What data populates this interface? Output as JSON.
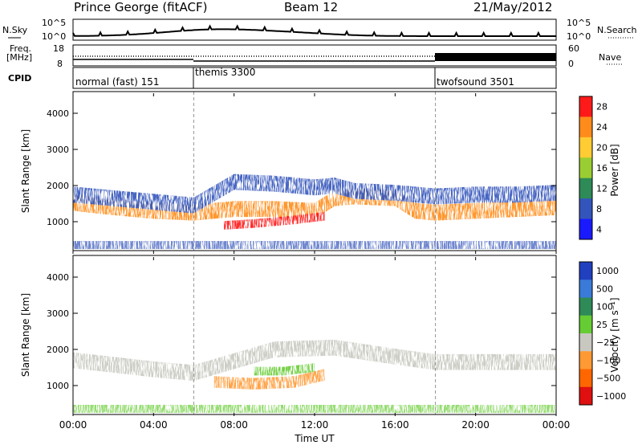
{
  "header": {
    "station": "Prince George (fitACF)",
    "beam": "Beam 12",
    "date": "21/May/2012"
  },
  "strip": {
    "nsky_label": "N.Sky",
    "nsearch_label": "N.Search",
    "noise_ticks": [
      "10^5",
      "10^0"
    ],
    "freq_label_1": "Freq.",
    "freq_label_2": "[MHz]",
    "freq_ticks": [
      "18",
      "8"
    ],
    "nave_label": "Nave",
    "nave_ticks": [
      "60",
      "0"
    ],
    "cpid_label": "CPID"
  },
  "cpid": [
    {
      "name": "normal (fast) 151",
      "start_h": 0
    },
    {
      "name": "themis 3300",
      "start_h": 6
    },
    {
      "name": "twofsound 3501",
      "start_h": 18
    }
  ],
  "power_panel": {
    "ylabel": "Slant Range [km]",
    "colorbar_label": "Power [dB]",
    "colorbar_ticks": [
      "28",
      "24",
      "20",
      "16",
      "12",
      "8",
      "4"
    ],
    "colorbar_colors": [
      "#ff1a1a",
      "#ff8c1a",
      "#ffcc33",
      "#9acd32",
      "#2e8b57",
      "#3355bb",
      "#1a1aff"
    ]
  },
  "velocity_panel": {
    "ylabel": "Slant Range [km]",
    "colorbar_label": "Velocity [m s⁻¹]",
    "colorbar_ticks": [
      "1000",
      "500",
      "100",
      "25",
      "−25",
      "−100",
      "−500",
      "−1000"
    ],
    "colorbar_colors": [
      "#2040c0",
      "#3a7ad8",
      "#2e8b57",
      "#66cc33",
      "#c8c8c0",
      "#ff9933",
      "#ff6600",
      "#e01010"
    ]
  },
  "x_axis": {
    "label": "Time UT",
    "ticks": [
      "00:00",
      "04:00",
      "08:00",
      "12:00",
      "16:00",
      "20:00",
      "00:00"
    ]
  },
  "chart_data": {
    "type": "heatmap",
    "title": "Prince George (fitACF)",
    "subtitle": "Beam 12",
    "date": "21/May/2012",
    "xlabel": "Time UT",
    "ylabel": "Slant Range [km]",
    "xlim": [
      0,
      24
    ],
    "ylim": [
      200,
      4600
    ],
    "y_ticks": [
      1000,
      2000,
      3000,
      4000
    ],
    "grid": false,
    "cpid_boundaries_h": [
      6,
      18
    ],
    "power_bands": [
      {
        "name": "main echo band",
        "points": [
          [
            0,
            1520
          ],
          [
            2,
            1400
          ],
          [
            4,
            1300
          ],
          [
            6,
            1250
          ],
          [
            8,
            1350
          ],
          [
            10,
            1350
          ],
          [
            12,
            1300
          ],
          [
            13,
            1650
          ],
          [
            14,
            1700
          ],
          [
            16,
            1650
          ],
          [
            17,
            1300
          ],
          [
            18,
            1250
          ],
          [
            20,
            1300
          ],
          [
            22,
            1350
          ],
          [
            24,
            1400
          ]
        ],
        "power_db": 22
      },
      {
        "name": "upper band",
        "points": [
          [
            0,
            1750
          ],
          [
            2,
            1650
          ],
          [
            4,
            1550
          ],
          [
            6,
            1450
          ],
          [
            8,
            2100
          ],
          [
            10,
            2050
          ],
          [
            12,
            1950
          ],
          [
            13,
            2000
          ],
          [
            14,
            1850
          ],
          [
            16,
            1800
          ],
          [
            18,
            1700
          ],
          [
            20,
            1750
          ],
          [
            22,
            1750
          ],
          [
            24,
            1800
          ]
        ],
        "power_db": 10
      },
      {
        "name": "strong near-range echo",
        "points": [
          [
            7.5,
            900
          ],
          [
            9,
            950
          ],
          [
            11,
            1050
          ],
          [
            12.5,
            1150
          ]
        ],
        "power_db": 30
      }
    ],
    "velocity_bands": [
      {
        "name": "ground scatter band",
        "points": [
          [
            0,
            1700
          ],
          [
            4,
            1450
          ],
          [
            6,
            1350
          ],
          [
            10,
            2000
          ],
          [
            13,
            2050
          ],
          [
            16,
            1800
          ],
          [
            18,
            1650
          ],
          [
            24,
            1650
          ]
        ],
        "velocity_ms": 0
      },
      {
        "name": "ionospheric echo",
        "points": [
          [
            7,
            1100
          ],
          [
            9,
            1050
          ],
          [
            11,
            1100
          ],
          [
            12.5,
            1300
          ]
        ],
        "velocity_ms": -300
      },
      {
        "name": "positive velocity core",
        "points": [
          [
            9,
            1400
          ],
          [
            10.5,
            1400
          ],
          [
            12,
            1500
          ]
        ],
        "velocity_ms": 120
      }
    ]
  }
}
